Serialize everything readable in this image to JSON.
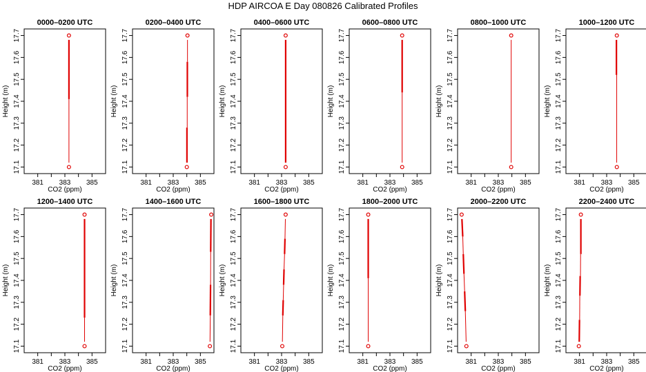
{
  "title": "HDP AIRCOA E  Day 080826  Calibrated Profiles",
  "colors": {
    "profile": "#e00000",
    "axis": "#000000",
    "background": "#ffffff"
  },
  "chart_data": [
    {
      "type": "line",
      "title": "0000–0200 UTC",
      "xlabel": "CO2 (ppm)",
      "ylabel": "Height (m)",
      "xlim": [
        380,
        386
      ],
      "ylim": [
        17.07,
        17.73
      ],
      "xticks": [
        381,
        383,
        385
      ],
      "yticks": [
        17.1,
        17.2,
        17.3,
        17.4,
        17.5,
        17.6,
        17.7
      ],
      "grid": false,
      "points": [
        {
          "x": 383.3,
          "y": 17.7
        },
        {
          "x": 383.3,
          "y": 17.1
        }
      ],
      "line_segments": [
        {
          "x": [
            383.3,
            383.3
          ],
          "y": [
            17.68,
            17.41
          ],
          "weight": "thick"
        },
        {
          "x": [
            383.3,
            383.3
          ],
          "y": [
            17.41,
            17.12
          ],
          "weight": "thin"
        }
      ]
    },
    {
      "type": "line",
      "title": "0200–0400 UTC",
      "xlabel": "CO2 (ppm)",
      "ylabel": "Height (m)",
      "xlim": [
        380,
        386
      ],
      "ylim": [
        17.07,
        17.73
      ],
      "xticks": [
        381,
        383,
        385
      ],
      "yticks": [
        17.1,
        17.2,
        17.3,
        17.4,
        17.5,
        17.6,
        17.7
      ],
      "grid": false,
      "points": [
        {
          "x": 384.05,
          "y": 17.7
        },
        {
          "x": 384.0,
          "y": 17.1
        }
      ],
      "line_segments": [
        {
          "x": [
            384.05,
            384.05
          ],
          "y": [
            17.68,
            17.58
          ],
          "weight": "thin"
        },
        {
          "x": [
            384.04,
            384.04
          ],
          "y": [
            17.58,
            17.42
          ],
          "weight": "thick"
        },
        {
          "x": [
            384.03,
            384.03
          ],
          "y": [
            17.42,
            17.28
          ],
          "weight": "thin"
        },
        {
          "x": [
            384.01,
            384.01
          ],
          "y": [
            17.28,
            17.12
          ],
          "weight": "thick"
        }
      ]
    },
    {
      "type": "line",
      "title": "0400–0600 UTC",
      "xlabel": "CO2 (ppm)",
      "ylabel": "Height (m)",
      "xlim": [
        380,
        386
      ],
      "ylim": [
        17.07,
        17.73
      ],
      "xticks": [
        381,
        383,
        385
      ],
      "yticks": [
        17.1,
        17.2,
        17.3,
        17.4,
        17.5,
        17.6,
        17.7
      ],
      "grid": false,
      "points": [
        {
          "x": 383.3,
          "y": 17.7
        },
        {
          "x": 383.3,
          "y": 17.1
        }
      ],
      "line_segments": [
        {
          "x": [
            383.3,
            383.3
          ],
          "y": [
            17.68,
            17.12
          ],
          "weight": "thick"
        }
      ]
    },
    {
      "type": "line",
      "title": "0600–0800 UTC",
      "xlabel": "CO2 (ppm)",
      "ylabel": "Height (m)",
      "xlim": [
        380,
        386
      ],
      "ylim": [
        17.07,
        17.73
      ],
      "xticks": [
        381,
        383,
        385
      ],
      "yticks": [
        17.1,
        17.2,
        17.3,
        17.4,
        17.5,
        17.6,
        17.7
      ],
      "grid": false,
      "points": [
        {
          "x": 383.9,
          "y": 17.7
        },
        {
          "x": 383.9,
          "y": 17.1
        }
      ],
      "line_segments": [
        {
          "x": [
            383.9,
            383.9
          ],
          "y": [
            17.68,
            17.44
          ],
          "weight": "thick"
        },
        {
          "x": [
            383.9,
            383.9
          ],
          "y": [
            17.44,
            17.12
          ],
          "weight": "thin"
        }
      ]
    },
    {
      "type": "line",
      "title": "0800–1000 UTC",
      "xlabel": "CO2 (ppm)",
      "ylabel": "Height (m)",
      "xlim": [
        380,
        386
      ],
      "ylim": [
        17.07,
        17.73
      ],
      "xticks": [
        381,
        383,
        385
      ],
      "yticks": [
        17.1,
        17.2,
        17.3,
        17.4,
        17.5,
        17.6,
        17.7
      ],
      "grid": false,
      "points": [
        {
          "x": 383.95,
          "y": 17.7
        },
        {
          "x": 383.95,
          "y": 17.1
        }
      ],
      "line_segments": [
        {
          "x": [
            383.95,
            383.95
          ],
          "y": [
            17.68,
            17.12
          ],
          "weight": "thin"
        }
      ]
    },
    {
      "type": "line",
      "title": "1000–1200 UTC",
      "xlabel": "CO2 (ppm)",
      "ylabel": "Height (m)",
      "xlim": [
        380,
        386
      ],
      "ylim": [
        17.07,
        17.73
      ],
      "xticks": [
        381,
        383,
        385
      ],
      "yticks": [
        17.1,
        17.2,
        17.3,
        17.4,
        17.5,
        17.6,
        17.7
      ],
      "grid": false,
      "points": [
        {
          "x": 383.75,
          "y": 17.7
        },
        {
          "x": 383.75,
          "y": 17.1
        }
      ],
      "line_segments": [
        {
          "x": [
            383.72,
            383.72
          ],
          "y": [
            17.68,
            17.52
          ],
          "weight": "thick"
        },
        {
          "x": [
            383.74,
            383.74
          ],
          "y": [
            17.52,
            17.12
          ],
          "weight": "thin"
        }
      ]
    },
    {
      "type": "line",
      "title": "1200–1400 UTC",
      "xlabel": "CO2 (ppm)",
      "ylabel": "Height (m)",
      "xlim": [
        380,
        386
      ],
      "ylim": [
        17.07,
        17.73
      ],
      "xticks": [
        381,
        383,
        385
      ],
      "yticks": [
        17.1,
        17.2,
        17.3,
        17.4,
        17.5,
        17.6,
        17.7
      ],
      "grid": false,
      "points": [
        {
          "x": 384.45,
          "y": 17.7
        },
        {
          "x": 384.45,
          "y": 17.1
        }
      ],
      "line_segments": [
        {
          "x": [
            384.45,
            384.45
          ],
          "y": [
            17.68,
            17.23
          ],
          "weight": "thick"
        },
        {
          "x": [
            384.45,
            384.45
          ],
          "y": [
            17.23,
            17.12
          ],
          "weight": "thin"
        }
      ]
    },
    {
      "type": "line",
      "title": "1400–1600 UTC",
      "xlabel": "CO2 (ppm)",
      "ylabel": "Height (m)",
      "xlim": [
        380,
        386
      ],
      "ylim": [
        17.07,
        17.73
      ],
      "xticks": [
        381,
        383,
        385
      ],
      "yticks": [
        17.1,
        17.2,
        17.3,
        17.4,
        17.5,
        17.6,
        17.7
      ],
      "grid": false,
      "points": [
        {
          "x": 385.8,
          "y": 17.7
        },
        {
          "x": 385.7,
          "y": 17.1
        }
      ],
      "line_segments": [
        {
          "x": [
            385.78,
            385.76
          ],
          "y": [
            17.68,
            17.53
          ],
          "weight": "thick"
        },
        {
          "x": [
            385.76,
            385.75
          ],
          "y": [
            17.53,
            17.38
          ],
          "weight": "thin"
        },
        {
          "x": [
            385.75,
            385.73
          ],
          "y": [
            17.38,
            17.24
          ],
          "weight": "thick"
        },
        {
          "x": [
            385.73,
            385.71
          ],
          "y": [
            17.24,
            17.12
          ],
          "weight": "thin"
        }
      ]
    },
    {
      "type": "line",
      "title": "1600–1800 UTC",
      "xlabel": "CO2 (ppm)",
      "ylabel": "Height (m)",
      "xlim": [
        380,
        386
      ],
      "ylim": [
        17.07,
        17.73
      ],
      "xticks": [
        381,
        383,
        385
      ],
      "yticks": [
        17.1,
        17.2,
        17.3,
        17.4,
        17.5,
        17.6,
        17.7
      ],
      "grid": false,
      "points": [
        {
          "x": 383.3,
          "y": 17.7
        },
        {
          "x": 383.05,
          "y": 17.1
        }
      ],
      "line_segments": [
        {
          "x": [
            383.28,
            383.25
          ],
          "y": [
            17.68,
            17.59
          ],
          "weight": "thin"
        },
        {
          "x": [
            383.25,
            383.22
          ],
          "y": [
            17.59,
            17.52
          ],
          "weight": "thick"
        },
        {
          "x": [
            383.22,
            383.18
          ],
          "y": [
            17.52,
            17.45
          ],
          "weight": "thin"
        },
        {
          "x": [
            383.18,
            383.15
          ],
          "y": [
            17.45,
            17.38
          ],
          "weight": "thick"
        },
        {
          "x": [
            383.15,
            383.12
          ],
          "y": [
            17.38,
            17.31
          ],
          "weight": "thin"
        },
        {
          "x": [
            383.12,
            383.09
          ],
          "y": [
            17.31,
            17.24
          ],
          "weight": "thick"
        },
        {
          "x": [
            383.09,
            383.06
          ],
          "y": [
            17.24,
            17.12
          ],
          "weight": "thin"
        }
      ]
    },
    {
      "type": "line",
      "title": "1800–2000 UTC",
      "xlabel": "CO2 (ppm)",
      "ylabel": "Height (m)",
      "xlim": [
        380,
        386
      ],
      "ylim": [
        17.07,
        17.73
      ],
      "xticks": [
        381,
        383,
        385
      ],
      "yticks": [
        17.1,
        17.2,
        17.3,
        17.4,
        17.5,
        17.6,
        17.7
      ],
      "grid": false,
      "points": [
        {
          "x": 381.4,
          "y": 17.7
        },
        {
          "x": 381.4,
          "y": 17.1
        }
      ],
      "line_segments": [
        {
          "x": [
            381.4,
            381.4
          ],
          "y": [
            17.68,
            17.41
          ],
          "weight": "thick"
        },
        {
          "x": [
            381.4,
            381.4
          ],
          "y": [
            17.41,
            17.12
          ],
          "weight": "thin"
        }
      ]
    },
    {
      "type": "line",
      "title": "2000–2200 UTC",
      "xlabel": "CO2 (ppm)",
      "ylabel": "Height (m)",
      "xlim": [
        380,
        386
      ],
      "ylim": [
        17.07,
        17.73
      ],
      "xticks": [
        381,
        383,
        385
      ],
      "yticks": [
        17.1,
        17.2,
        17.3,
        17.4,
        17.5,
        17.6,
        17.7
      ],
      "grid": false,
      "points": [
        {
          "x": 380.3,
          "y": 17.7
        },
        {
          "x": 380.65,
          "y": 17.1
        }
      ],
      "line_segments": [
        {
          "x": [
            380.32,
            380.38
          ],
          "y": [
            17.68,
            17.6
          ],
          "weight": "thick"
        },
        {
          "x": [
            380.38,
            380.42
          ],
          "y": [
            17.6,
            17.52
          ],
          "weight": "thin"
        },
        {
          "x": [
            380.42,
            380.47
          ],
          "y": [
            17.52,
            17.43
          ],
          "weight": "thick"
        },
        {
          "x": [
            380.47,
            380.52
          ],
          "y": [
            17.43,
            17.35
          ],
          "weight": "thin"
        },
        {
          "x": [
            380.52,
            380.57
          ],
          "y": [
            17.35,
            17.26
          ],
          "weight": "thick"
        },
        {
          "x": [
            380.57,
            380.63
          ],
          "y": [
            17.26,
            17.12
          ],
          "weight": "thin"
        }
      ]
    },
    {
      "type": "line",
      "title": "2200–2400 UTC",
      "xlabel": "CO2 (ppm)",
      "ylabel": "Height (m)",
      "xlim": [
        380,
        386
      ],
      "ylim": [
        17.07,
        17.73
      ],
      "xticks": [
        381,
        383,
        385
      ],
      "yticks": [
        17.1,
        17.2,
        17.3,
        17.4,
        17.5,
        17.6,
        17.7
      ],
      "grid": false,
      "points": [
        {
          "x": 381.1,
          "y": 17.7
        },
        {
          "x": 380.95,
          "y": 17.1
        }
      ],
      "line_segments": [
        {
          "x": [
            381.1,
            381.1
          ],
          "y": [
            17.68,
            17.52
          ],
          "weight": "thick"
        },
        {
          "x": [
            381.08,
            381.07
          ],
          "y": [
            17.52,
            17.42
          ],
          "weight": "thin"
        },
        {
          "x": [
            381.05,
            381.03
          ],
          "y": [
            17.42,
            17.33
          ],
          "weight": "thick"
        },
        {
          "x": [
            381.02,
            381.01
          ],
          "y": [
            17.33,
            17.22
          ],
          "weight": "thin"
        },
        {
          "x": [
            381.0,
            380.98
          ],
          "y": [
            17.22,
            17.12
          ],
          "weight": "thick"
        }
      ]
    }
  ]
}
